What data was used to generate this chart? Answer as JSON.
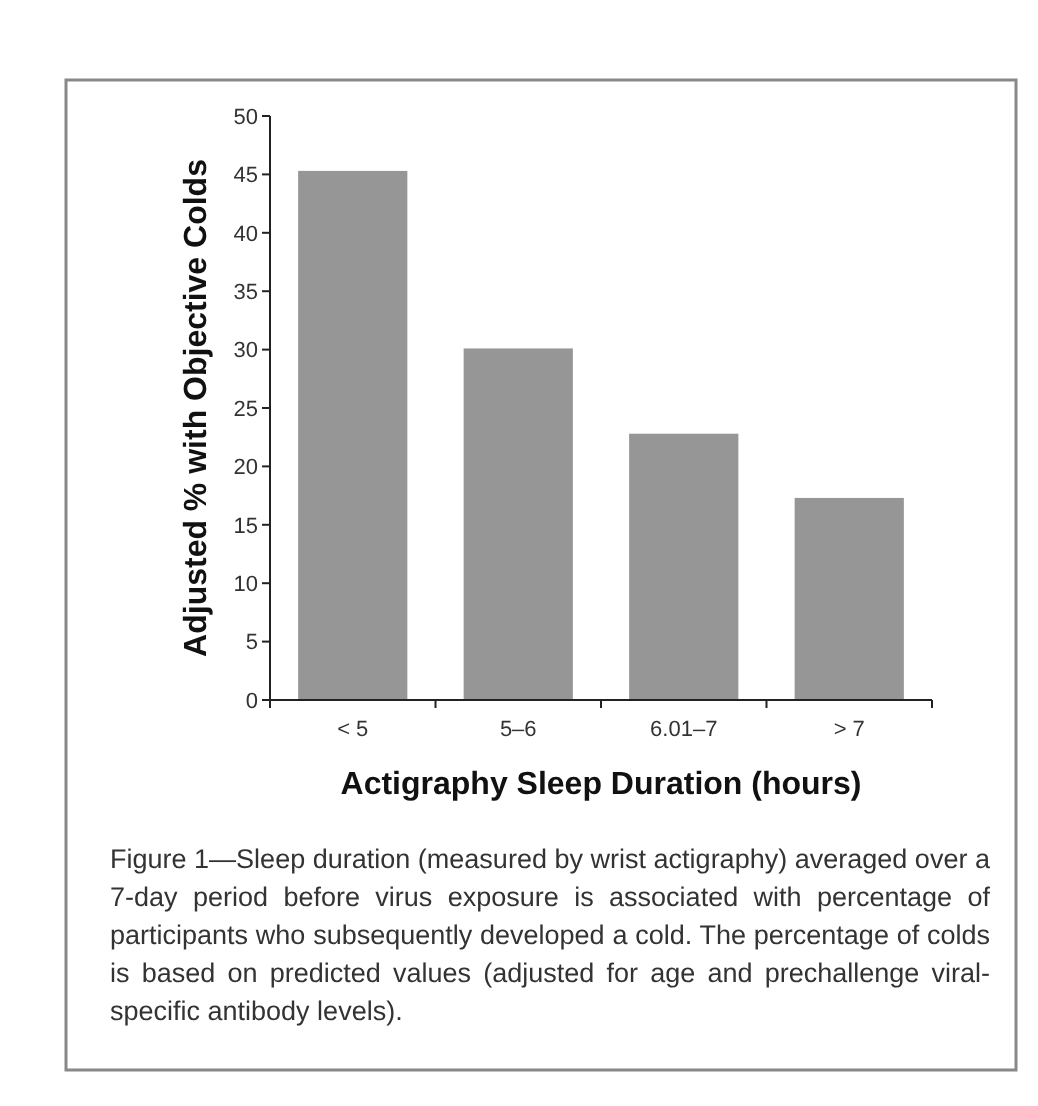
{
  "chart_data": {
    "type": "bar",
    "xlabel": "Actigraphy Sleep Duration (hours)",
    "ylabel": "Adjusted % with Objective Colds",
    "categories": [
      "< 5",
      "5–6",
      "6.01–7",
      "> 7"
    ],
    "values": [
      45.3,
      30.1,
      22.8,
      17.3
    ],
    "color": "#969696",
    "ylim": [
      0,
      50
    ],
    "yticks": [
      0,
      5,
      10,
      15,
      20,
      25,
      30,
      35,
      40,
      45,
      50
    ],
    "grid": false,
    "annotations": [
      "Figure 1—Sleep duration (measured by wrist actigraphy) averaged over a 7-day period before virus exposure is associated with percentage of participants who subsequently developed a cold. The percentage of colds is based on predicted values (adjusted for age and prechallenge viral-specific antibody levels)."
    ]
  }
}
